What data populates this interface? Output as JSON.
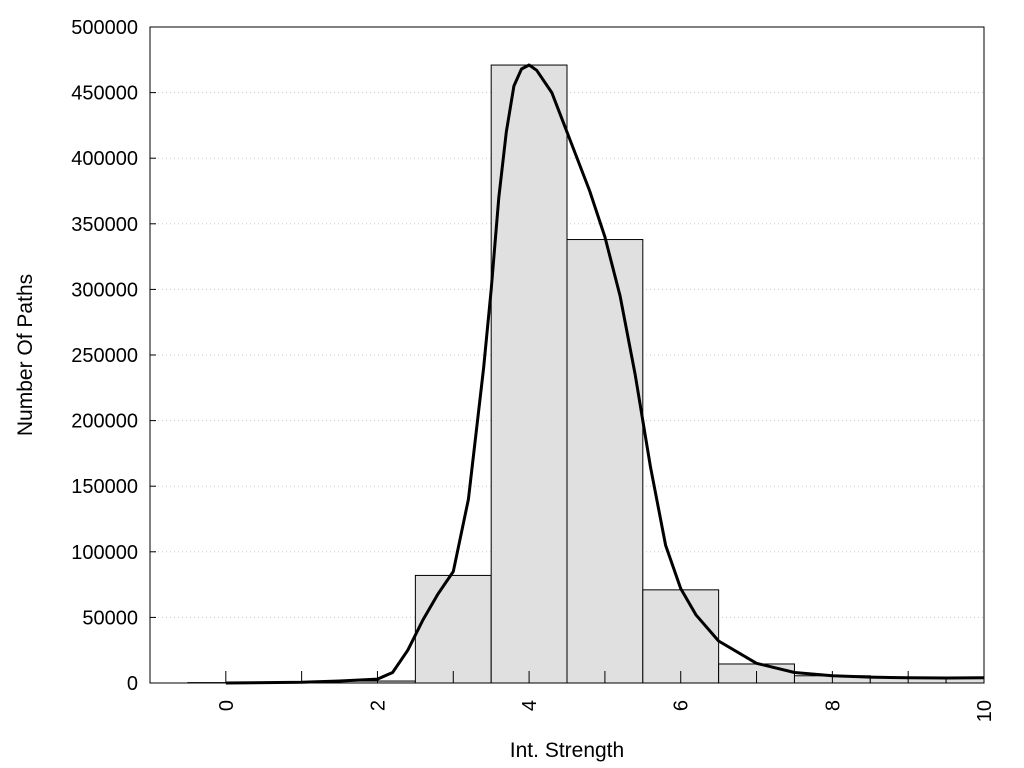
{
  "chart_data": {
    "type": "bar",
    "title": "",
    "xlabel": "Int. Strength",
    "ylabel": "Number Of Paths",
    "xlim": [
      -1,
      10
    ],
    "ylim": [
      0,
      500000
    ],
    "grid": true,
    "x_ticks": [
      "0",
      "2",
      "4",
      "6",
      "8",
      "10"
    ],
    "y_ticks": [
      "0",
      "50000",
      "100000",
      "150000",
      "200000",
      "250000",
      "300000",
      "350000",
      "400000",
      "450000",
      "500000"
    ],
    "histogram": {
      "bin_centers": [
        0,
        1,
        2,
        3,
        4,
        5,
        6,
        7,
        8,
        9,
        10
      ],
      "values": [
        300,
        600,
        1500,
        82000,
        471000,
        338000,
        71000,
        14500,
        5500,
        4000,
        3500
      ],
      "fill": "#e0e0e0",
      "edge": "#000000"
    },
    "fit_curve": {
      "x": [
        0,
        1,
        1.5,
        2,
        2.2,
        2.4,
        2.6,
        2.8,
        3,
        3.2,
        3.4,
        3.5,
        3.6,
        3.7,
        3.8,
        3.9,
        4,
        4.1,
        4.3,
        4.5,
        4.8,
        5,
        5.2,
        5.4,
        5.6,
        5.8,
        6,
        6.2,
        6.5,
        7,
        7.5,
        8,
        8.5,
        9,
        9.5,
        10
      ],
      "y": [
        0,
        500,
        1500,
        3000,
        8000,
        25000,
        48000,
        68000,
        85000,
        140000,
        240000,
        300000,
        370000,
        420000,
        455000,
        468000,
        471000,
        467000,
        450000,
        420000,
        375000,
        340000,
        295000,
        235000,
        165000,
        105000,
        72000,
        52000,
        32000,
        15000,
        8000,
        5500,
        4500,
        4000,
        3800,
        4000
      ],
      "color": "#000000"
    }
  }
}
